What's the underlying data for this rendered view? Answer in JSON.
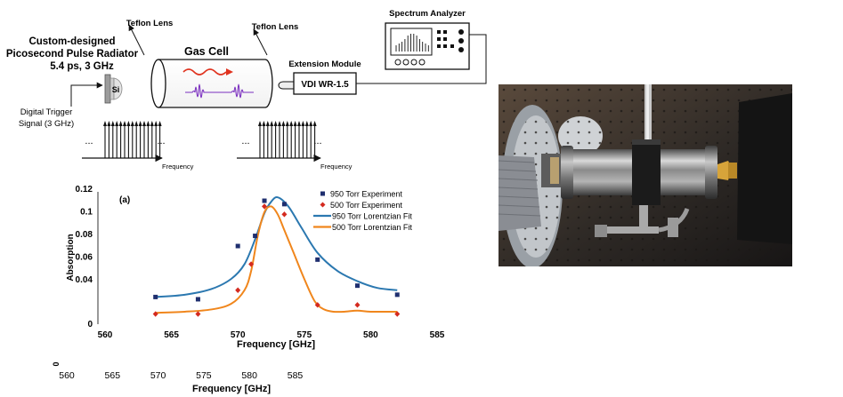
{
  "setup": {
    "radiator_title_1": "Custom-designed",
    "radiator_title_2": "Picosecond Pulse Radiator",
    "radiator_spec": "5.4 ps, 3 GHz",
    "si_label": "Si",
    "trigger_1": "Digital Trigger",
    "trigger_2": "Signal (3 GHz)",
    "lens_left": "Teflon Lens",
    "lens_right": "Teflon Lens",
    "gas_cell": "Gas Cell",
    "extension_module": "Extension Module",
    "vdi": "VDI WR-1.5",
    "spectrum_analyzer": "Spectrum Analyzer",
    "ellipsis": "...",
    "frequency": "Frequency"
  },
  "chart_data": {
    "type": "scatter",
    "panel_label": "(a)",
    "xlabel": "Frequency [GHz]",
    "ylabel": "Absorption",
    "xlim": [
      560,
      585
    ],
    "ylim": [
      0,
      0.12
    ],
    "x_ticks": [
      "560",
      "565",
      "570",
      "575",
      "580",
      "585"
    ],
    "y_ticks": [
      "0.04",
      "0.06",
      "0.08",
      "0.1",
      "0.12"
    ],
    "series": [
      {
        "name": "950 Torr Experiment",
        "kind": "points",
        "marker": "square",
        "color": "#1f2f6f",
        "x": [
          563.8,
          567,
          570,
          571.3,
          572,
          573.5,
          576,
          579,
          582
        ],
        "y": [
          0.024,
          0.022,
          0.069,
          0.078,
          0.109,
          0.106,
          0.057,
          0.034,
          0.026
        ]
      },
      {
        "name": "500 Torr Experiment",
        "kind": "points",
        "marker": "diamond",
        "color": "#d42a1f",
        "x": [
          563.8,
          567,
          570,
          571,
          572,
          573.5,
          576,
          579,
          582
        ],
        "y": [
          0.009,
          0.009,
          0.03,
          0.053,
          0.104,
          0.097,
          0.017,
          0.017,
          0.009
        ]
      },
      {
        "name": "950 Torr Lorentzian Fit",
        "kind": "line",
        "color": "#2b78b0",
        "x": [
          563.8,
          566,
          568,
          569.5,
          570.5,
          571.3,
          572,
          572.5,
          573,
          573.8,
          574.8,
          576,
          577.5,
          579,
          580.5,
          582
        ],
        "y": [
          0.024,
          0.026,
          0.031,
          0.04,
          0.053,
          0.075,
          0.098,
          0.108,
          0.112,
          0.104,
          0.085,
          0.063,
          0.047,
          0.038,
          0.032,
          0.03
        ]
      },
      {
        "name": "500 Torr Lorentzian Fit",
        "kind": "line",
        "color": "#f0861c",
        "x": [
          563.8,
          566,
          568,
          569.5,
          570.5,
          571,
          571.5,
          572,
          572.5,
          573,
          573.5,
          574.2,
          575,
          575.8,
          576.5,
          577.2,
          578,
          579,
          580,
          582
        ],
        "y": [
          0.01,
          0.011,
          0.013,
          0.018,
          0.03,
          0.047,
          0.078,
          0.099,
          0.104,
          0.097,
          0.083,
          0.063,
          0.04,
          0.02,
          0.013,
          0.011,
          0.011,
          0.012,
          0.011,
          0.011
        ]
      }
    ]
  },
  "ghost_axis": {
    "zero": "0",
    "ticks": [
      "560",
      "565",
      "570",
      "575",
      "580",
      "585"
    ],
    "label": "Frequency [GHz]"
  }
}
